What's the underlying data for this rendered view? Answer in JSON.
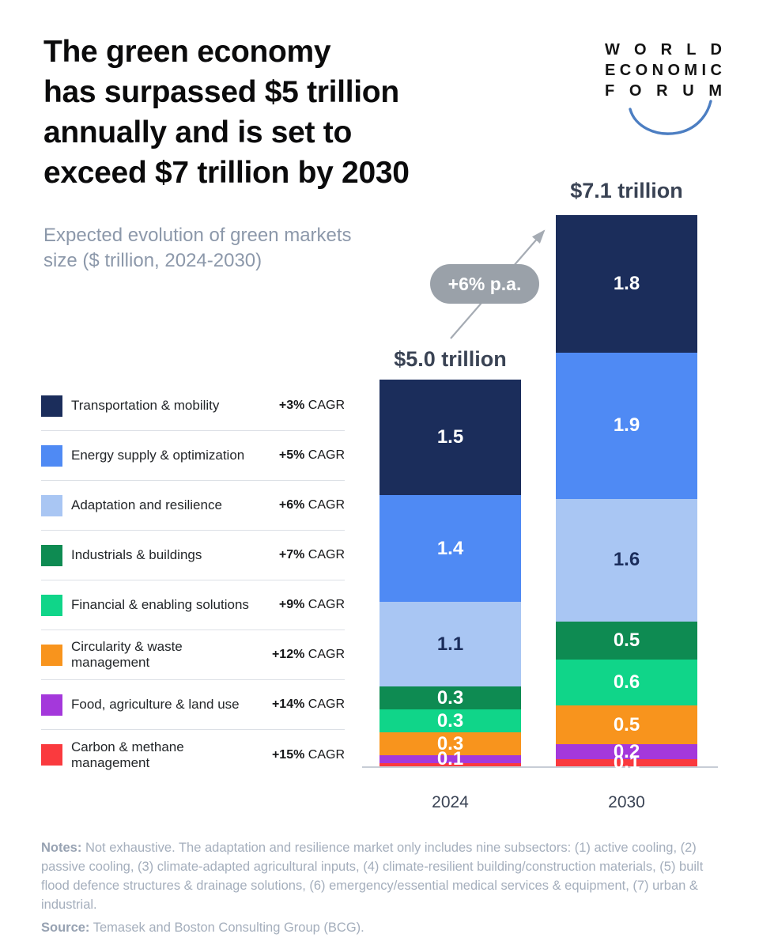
{
  "header": {
    "title_lines": [
      "The green economy",
      "has surpassed $5 trillion",
      "annually and is set to",
      "exceed $7 trillion by 2030"
    ],
    "logo_lines": [
      "WORLD",
      "ECONOMIC",
      "FORUM"
    ],
    "logo_arc_color": "#4C7EC2"
  },
  "subtitle_lines": [
    "Expected evolution of green markets",
    "size ($ trillion, 2024-2030)"
  ],
  "chart_data": {
    "type": "bar",
    "stacked": true,
    "title": "Expected evolution of green markets size ($ trillion, 2024-2030)",
    "unit": "$ trillion",
    "categories": [
      "2024",
      "2030"
    ],
    "totals": [
      "$5.0 trillion",
      "$7.1 trillion"
    ],
    "growth_annotation": "+6% p.a.",
    "cagr_suffix": "CAGR",
    "legend_position": "left",
    "ylim": [
      0,
      7.5
    ],
    "grid": false,
    "series": [
      {
        "name": "Transportation & mobility",
        "cagr": "+3%",
        "color": "#1B2D5B",
        "values": [
          1.5,
          1.8
        ],
        "labels": [
          "1.5",
          "1.8"
        ]
      },
      {
        "name": "Energy supply & optimization",
        "cagr": "+5%",
        "color": "#4F8AF4",
        "values": [
          1.4,
          1.9
        ],
        "labels": [
          "1.4",
          "1.9"
        ]
      },
      {
        "name": "Adaptation and resilience",
        "cagr": "+6%",
        "color": "#A9C6F3",
        "values": [
          1.1,
          1.6
        ],
        "labels": [
          "1.1",
          "1.6"
        ],
        "dark_label": true
      },
      {
        "name": "Industrials & buildings",
        "cagr": "+7%",
        "color": "#0E8B52",
        "values": [
          0.3,
          0.5
        ],
        "labels": [
          "0.3",
          "0.5"
        ]
      },
      {
        "name": "Financial & enabling solutions",
        "cagr": "+9%",
        "color": "#10D589",
        "values": [
          0.3,
          0.6
        ],
        "labels": [
          "0.3",
          "0.6"
        ]
      },
      {
        "name": "Circularity & waste management",
        "cagr": "+12%",
        "color": "#F8941D",
        "values": [
          0.3,
          0.5
        ],
        "labels": [
          "0.3",
          "0.5"
        ]
      },
      {
        "name": "Food, agriculture & land use",
        "cagr": "+14%",
        "color": "#A438DB",
        "values": [
          0.1,
          0.2
        ],
        "labels": [
          "0.1",
          "0.2"
        ]
      },
      {
        "name": "Carbon & methane management",
        "cagr": "+15%",
        "color": "#FA3A3E",
        "values": [
          0.05,
          0.1
        ],
        "labels": [
          "",
          "0.1"
        ]
      }
    ]
  },
  "footer": {
    "notes_label": "Notes:",
    "notes_text": "Not exhaustive. The adaptation and resilience market only includes nine subsectors: (1) active cooling, (2) passive cooling, (3) climate-adapted agricultural inputs, (4) climate-resilient building/construction materials, (5) built flood defence structures & drainage solutions, (6) emergency/essential medical services & equipment, (7) urban & industrial.",
    "source_label": "Source:",
    "source_text": "Temasek and Boston Consulting Group (BCG)."
  }
}
